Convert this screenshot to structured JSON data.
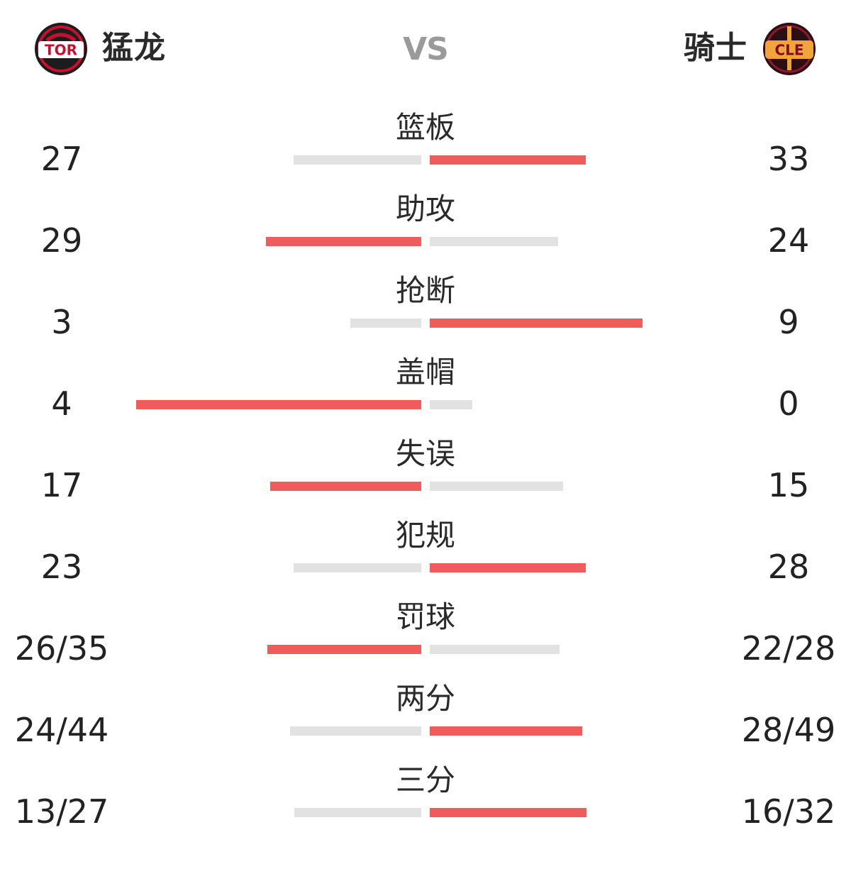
{
  "colors": {
    "accent": "#f05c5c",
    "neutral_bar": "#e2e2e2",
    "vs_text": "#9a9a9a"
  },
  "header": {
    "home": {
      "name": "猛龙",
      "logo_text": "TOR"
    },
    "vs": "VS",
    "away": {
      "name": "骑士",
      "logo_text": "CLE"
    }
  },
  "stats": [
    {
      "label": "篮板",
      "home": "27",
      "away": "33",
      "home_num": 27,
      "away_num": 33
    },
    {
      "label": "助攻",
      "home": "29",
      "away": "24",
      "home_num": 29,
      "away_num": 24
    },
    {
      "label": "抢断",
      "home": "3",
      "away": "9",
      "home_num": 3,
      "away_num": 9
    },
    {
      "label": "盖帽",
      "home": "4",
      "away": "0",
      "home_num": 4,
      "away_num": 0
    },
    {
      "label": "失误",
      "home": "17",
      "away": "15",
      "home_num": 17,
      "away_num": 15
    },
    {
      "label": "犯规",
      "home": "23",
      "away": "28",
      "home_num": 23,
      "away_num": 28
    },
    {
      "label": "罚球",
      "home": "26/35",
      "away": "22/28",
      "home_num": 26,
      "away_num": 22
    },
    {
      "label": "两分",
      "home": "24/44",
      "away": "28/49",
      "home_num": 24,
      "away_num": 28
    },
    {
      "label": "三分",
      "home": "13/27",
      "away": "16/32",
      "home_num": 13,
      "away_num": 16
    }
  ]
}
